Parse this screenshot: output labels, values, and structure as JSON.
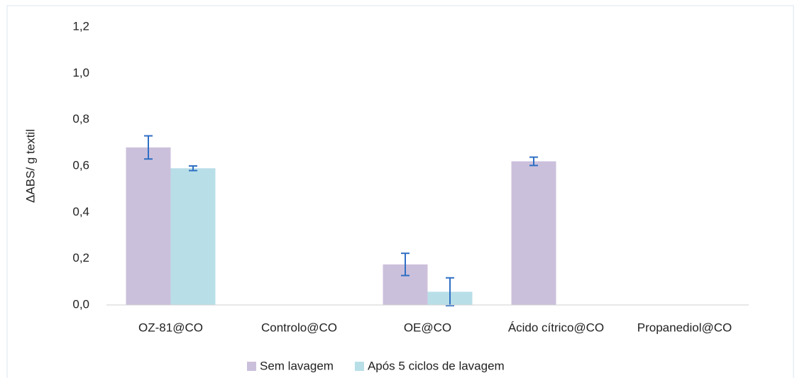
{
  "chart_data": {
    "type": "bar",
    "y_label": "ΔABS/ g textil",
    "categories": [
      "OZ-81@CO",
      "Controlo@CO",
      "OE@CO",
      "Ácido cítrico@CO",
      "Propanediol@CO"
    ],
    "series": [
      {
        "name": "Sem lavagem",
        "color": "#cbc0dc",
        "values": [
          0.68,
          0,
          0.175,
          0.62,
          0
        ],
        "errors": [
          0.05,
          0,
          0.048,
          0.018,
          0
        ]
      },
      {
        "name": "Após 5 ciclos de lavagem",
        "color": "#b8dfe8",
        "values": [
          0.59,
          0,
          0.057,
          0,
          0
        ],
        "errors": [
          0.01,
          0,
          0.06,
          0,
          0
        ]
      }
    ],
    "error_color": "#2f6fc4",
    "ylim": [
      0,
      1.2
    ],
    "yticks": [
      {
        "value": 0,
        "label": "0,0"
      },
      {
        "value": 0.2,
        "label": "0,2"
      },
      {
        "value": 0.4,
        "label": "0,4"
      },
      {
        "value": 0.6,
        "label": "0,6"
      },
      {
        "value": 0.8,
        "label": "0,8"
      },
      {
        "value": 1.0,
        "label": "1,0"
      },
      {
        "value": 1.2,
        "label": "1,2"
      }
    ],
    "legend": "bottom"
  }
}
